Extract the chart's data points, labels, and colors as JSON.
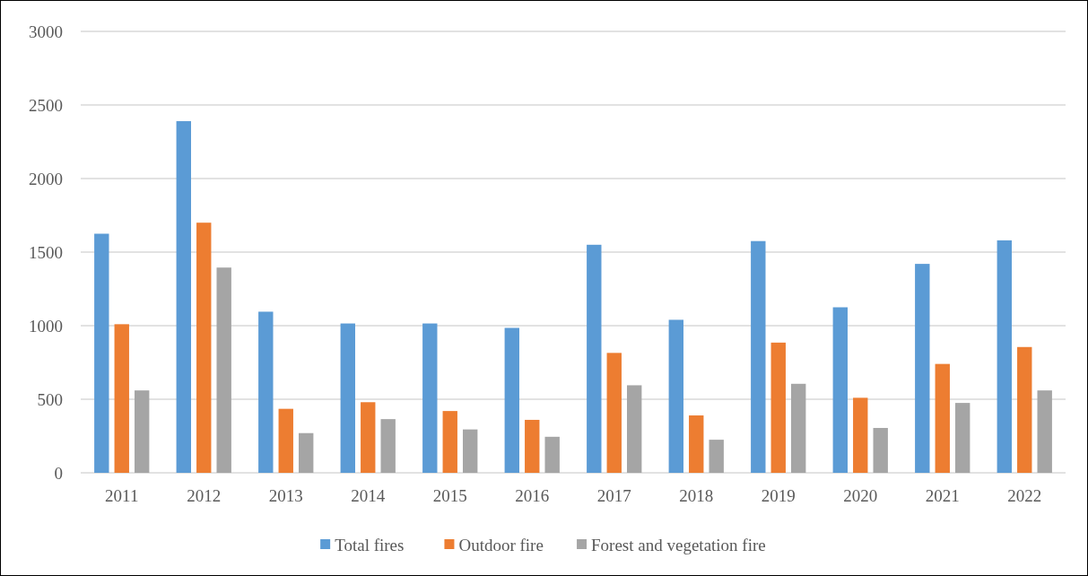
{
  "chart_data": {
    "type": "bar",
    "categories": [
      "2011",
      "2012",
      "2013",
      "2014",
      "2015",
      "2016",
      "2017",
      "2018",
      "2019",
      "2020",
      "2021",
      "2022"
    ],
    "series": [
      {
        "name": "Total fires",
        "color": "#5b9bd5",
        "values": [
          1625,
          2390,
          1095,
          1015,
          1015,
          985,
          1550,
          1040,
          1575,
          1125,
          1420,
          1580
        ]
      },
      {
        "name": "Outdoor fire",
        "color": "#ed7d31",
        "values": [
          1010,
          1700,
          435,
          480,
          420,
          360,
          815,
          390,
          885,
          510,
          740,
          855
        ]
      },
      {
        "name": "Forest and vegetation fire",
        "color": "#a5a5a5",
        "values": [
          560,
          1395,
          270,
          365,
          295,
          245,
          595,
          225,
          605,
          305,
          475,
          560
        ]
      }
    ],
    "ylim": [
      0,
      3000
    ],
    "yticks": [
      0,
      500,
      1000,
      1500,
      2000,
      2500,
      3000
    ],
    "grid": "y",
    "legend": "bottom"
  }
}
